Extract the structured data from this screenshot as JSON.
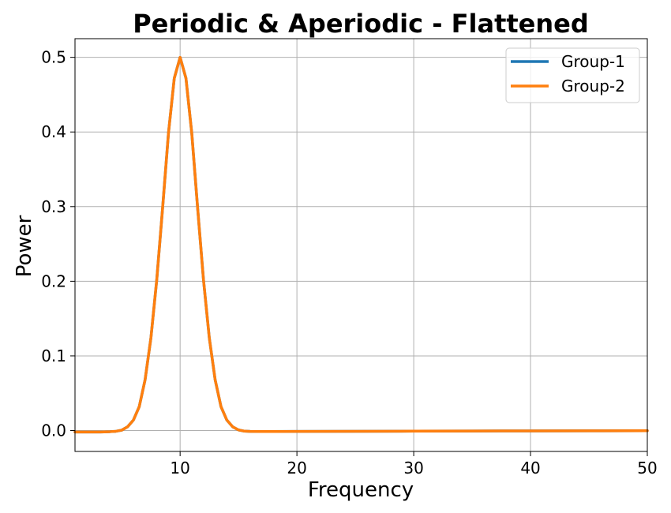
{
  "chart_data": {
    "type": "line",
    "title": "Periodic & Aperiodic - Flattened",
    "xlabel": "Frequency",
    "ylabel": "Power",
    "xlim": [
      1,
      50
    ],
    "ylim": [
      -0.028,
      0.525
    ],
    "xticks": [
      10,
      20,
      30,
      40,
      50
    ],
    "yticks": [
      0.0,
      0.1,
      0.2,
      0.3,
      0.4,
      0.5
    ],
    "ytick_labels": [
      "0.0",
      "0.1",
      "0.2",
      "0.3",
      "0.4",
      "0.5"
    ],
    "grid": true,
    "legend_position": "top-right",
    "x": [
      1,
      1.5,
      2,
      2.5,
      3,
      3.5,
      4,
      4.5,
      5,
      5.5,
      6,
      6.5,
      7,
      7.5,
      8,
      8.5,
      9,
      9.5,
      10,
      10.5,
      11,
      11.5,
      12,
      12.5,
      13,
      13.5,
      14,
      14.5,
      15,
      15.5,
      16,
      17,
      18,
      20,
      25,
      30,
      35,
      40,
      45,
      50
    ],
    "series": [
      {
        "name": "Group-1",
        "color": "#1f77b4",
        "values": [
          -0.002,
          -0.002,
          -0.002,
          -0.002,
          -0.002,
          -0.0018,
          -0.0015,
          -0.001,
          0.0005,
          0.005,
          0.014,
          0.032,
          0.068,
          0.124,
          0.202,
          0.298,
          0.398,
          0.472,
          0.5,
          0.472,
          0.398,
          0.298,
          0.202,
          0.124,
          0.068,
          0.032,
          0.014,
          0.005,
          0.0008,
          -0.0008,
          -0.0012,
          -0.0013,
          -0.0013,
          -0.0012,
          -0.001,
          -0.0008,
          -0.0006,
          -0.0005,
          -0.0004,
          -0.0003
        ]
      },
      {
        "name": "Group-2",
        "color": "#ff7f0e",
        "values": [
          -0.002,
          -0.002,
          -0.002,
          -0.002,
          -0.002,
          -0.0018,
          -0.0015,
          -0.001,
          0.0005,
          0.005,
          0.014,
          0.032,
          0.068,
          0.124,
          0.202,
          0.298,
          0.398,
          0.472,
          0.5,
          0.472,
          0.398,
          0.298,
          0.202,
          0.124,
          0.068,
          0.032,
          0.014,
          0.005,
          0.0008,
          -0.0008,
          -0.0012,
          -0.0013,
          -0.0013,
          -0.0012,
          -0.001,
          -0.0008,
          -0.0006,
          -0.0005,
          -0.0004,
          -0.0003
        ]
      }
    ]
  }
}
